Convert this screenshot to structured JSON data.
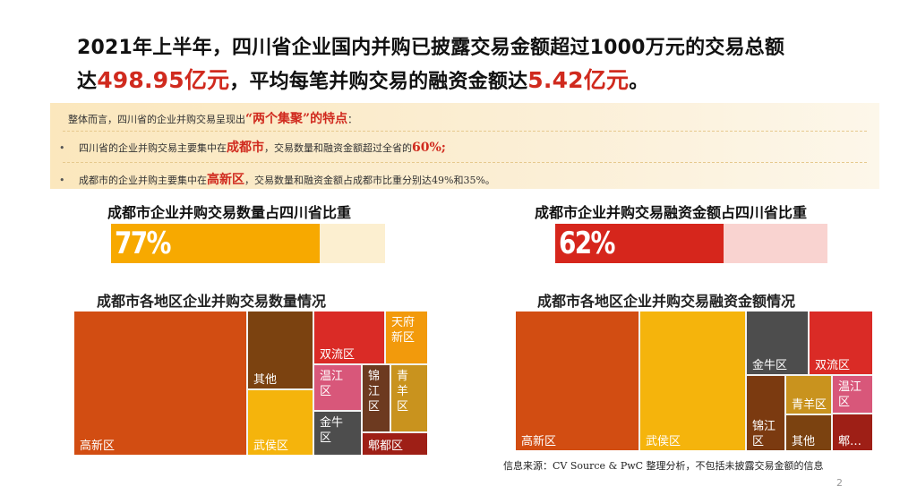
{
  "headline": {
    "line1": "2021年上半年，四川省企业国内并购已披露交易金额超过1000万元的交易总额",
    "line2_a": "达",
    "total": "498.95亿元",
    "line2_b": "，平均每笔并购交易的融资金额达",
    "avg": "5.42亿元",
    "line2_c": "。"
  },
  "summary": {
    "intro_a": "整体而言，四川省的企业并购交易呈现出",
    "intro_em": "“两个集聚”的特点",
    "intro_b": "：",
    "bullets": [
      {
        "dot": "•",
        "a": "四川省的企业并购交易主要集中在",
        "em": "成都市",
        "b": "，交易数量和融资金额超过全省的",
        "em2": "60%;",
        "c": ""
      },
      {
        "dot": "•",
        "a": "成都市的企业并购主要集中在",
        "em": "高新区",
        "b": "，交易数量和融资金额占成都市比重分别达49%和35%。",
        "em2": "",
        "c": ""
      }
    ]
  },
  "gauges": [
    {
      "title": "成都市企业并购交易数量占四川省比重",
      "label": "77%",
      "fill_color": "#f7a900",
      "track_color": "#fcefd0"
    },
    {
      "title": "成都市企业并购交易融资金额占四川省比重",
      "label": "62%",
      "fill_color": "#d6261c",
      "track_color": "#f9d3d0"
    }
  ],
  "chart_data": [
    {
      "type": "bar",
      "title": "成都市企业并购交易数量占四川省比重",
      "categories": [
        "成都市"
      ],
      "values": [
        77
      ],
      "unit": "%",
      "ylim": [
        0,
        100
      ]
    },
    {
      "type": "bar",
      "title": "成都市企业并购交易融资金额占四川省比重",
      "categories": [
        "成都市"
      ],
      "values": [
        62
      ],
      "unit": "%",
      "ylim": [
        0,
        100
      ]
    },
    {
      "type": "treemap",
      "title": "成都市各地区企业并购交易数量情况",
      "categories": [
        "高新区",
        "其他",
        "武侯区",
        "双流区",
        "天府新区",
        "温江区",
        "锦江区",
        "青羊区",
        "金牛区",
        "郫都区"
      ],
      "values": [
        49,
        11,
        9.5,
        6.5,
        4,
        3,
        3.5,
        3.5,
        3,
        2
      ],
      "colors": [
        "#d24d12",
        "#7b4210",
        "#f5b40c",
        "#da2b26",
        "#f29a0c",
        "#d8577a",
        "#6d3a20",
        "#c9931e",
        "#4d4d4d",
        "#9e1f16"
      ]
    },
    {
      "type": "treemap",
      "title": "成都市各地区企业并购交易融资金额情况",
      "categories": [
        "高新区",
        "武侯区",
        "金牛区",
        "双流区",
        "锦江区",
        "青羊区",
        "其他",
        "温江区",
        "郫…"
      ],
      "values": [
        35,
        33,
        6,
        7,
        5,
        3,
        3,
        3,
        1.5
      ],
      "colors": [
        "#d24d12",
        "#f5b40c",
        "#4d4d4d",
        "#da2b26",
        "#7b3a10",
        "#c9931e",
        "#7b4210",
        "#d8577a",
        "#9e1f16"
      ]
    }
  ],
  "treemap_titles": [
    "成都市各地区企业并购交易数量情况",
    "成都市各地区企业并购交易融资金额情况"
  ],
  "source": "信息来源：CV Source & PwC 整理分析，不包括未披露交易金额的信息",
  "page_number": "2"
}
